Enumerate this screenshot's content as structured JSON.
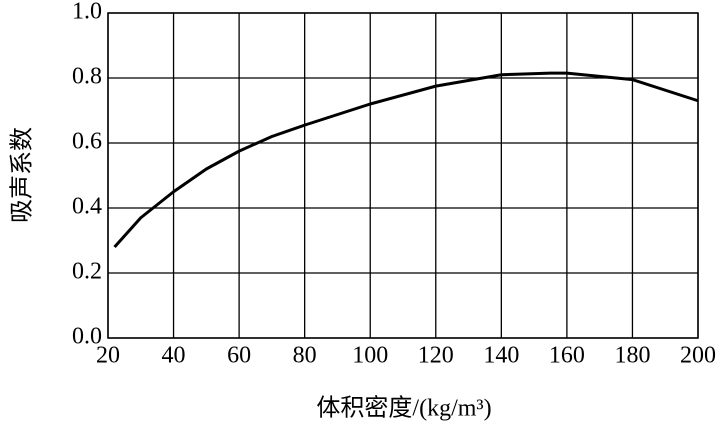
{
  "chart_data": {
    "type": "line",
    "xlabel": "体积密度/(kg/m³)",
    "ylabel": "吸声系数",
    "x": [
      22,
      30,
      40,
      50,
      60,
      70,
      80,
      100,
      120,
      140,
      155,
      160,
      180,
      200
    ],
    "series": [
      {
        "color": "#000000",
        "values": [
          0.28,
          0.37,
          0.45,
          0.52,
          0.575,
          0.62,
          0.655,
          0.72,
          0.775,
          0.81,
          0.815,
          0.815,
          0.795,
          0.73
        ]
      }
    ],
    "xlim": [
      20,
      200
    ],
    "xticks": [
      20,
      40,
      60,
      80,
      100,
      120,
      140,
      160,
      180,
      200
    ],
    "ylim": [
      0,
      1
    ],
    "yticks": [
      {
        "value": 0,
        "label": "0.0"
      },
      0.2,
      0.4,
      0.6,
      0.8,
      {
        "value": 1,
        "label": "1.0"
      }
    ],
    "grid": true
  }
}
